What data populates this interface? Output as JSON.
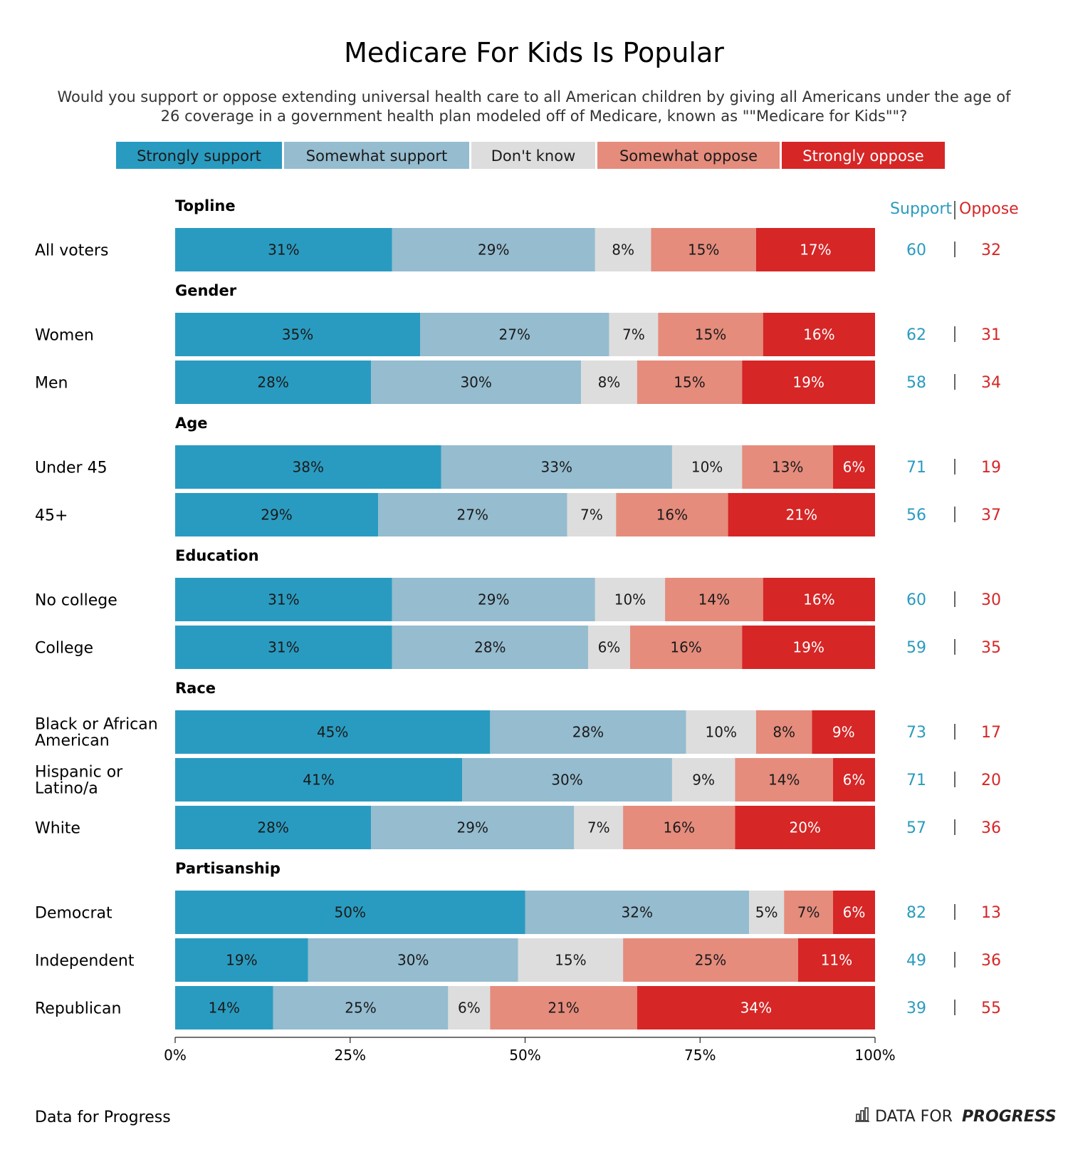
{
  "title": "Medicare For Kids Is Popular",
  "subtitle_lines": [
    "Would you support or oppose extending universal health care to all American children by giving all Americans under the age of",
    "26 coverage in a government health plan modeled off of Medicare, known as \"\"Medicare for Kids\"\"?"
  ],
  "net_header": {
    "support": "Support",
    "oppose": "Oppose"
  },
  "footer": {
    "source": "Data for Progress",
    "brand_plain": "DATA FOR",
    "brand_bold": "PROGRESS"
  },
  "colors": {
    "strongly_support": "#2a9bc0",
    "somewhat_support": "#95bccf",
    "dont_know": "#dddddd",
    "somewhat_oppose": "#e58c7d",
    "strongly_oppose": "#d62626",
    "support_text": "#2a9bc0",
    "oppose_text": "#d62626"
  },
  "chart_data": {
    "type": "bar",
    "orientation": "horizontal",
    "stacked": true,
    "xlim": [
      0,
      100
    ],
    "x_ticks": [
      "0%",
      "25%",
      "50%",
      "75%",
      "100%"
    ],
    "legend": [
      "Strongly support",
      "Somewhat support",
      "Don't know",
      "Somewhat oppose",
      "Strongly oppose"
    ],
    "legend_position": "top",
    "groups": [
      {
        "name": "Topline",
        "rows": [
          {
            "label": [
              "All voters"
            ],
            "values": [
              31,
              29,
              8,
              15,
              17
            ],
            "support": 60,
            "oppose": 32
          }
        ]
      },
      {
        "name": "Gender",
        "rows": [
          {
            "label": [
              "Women"
            ],
            "values": [
              35,
              27,
              7,
              15,
              16
            ],
            "support": 62,
            "oppose": 31
          },
          {
            "label": [
              "Men"
            ],
            "values": [
              28,
              30,
              8,
              15,
              19
            ],
            "support": 58,
            "oppose": 34
          }
        ]
      },
      {
        "name": "Age",
        "rows": [
          {
            "label": [
              "Under 45"
            ],
            "values": [
              38,
              33,
              10,
              13,
              6
            ],
            "support": 71,
            "oppose": 19
          },
          {
            "label": [
              "45+"
            ],
            "values": [
              29,
              27,
              7,
              16,
              21
            ],
            "support": 56,
            "oppose": 37
          }
        ]
      },
      {
        "name": "Education",
        "rows": [
          {
            "label": [
              "No college"
            ],
            "values": [
              31,
              29,
              10,
              14,
              16
            ],
            "support": 60,
            "oppose": 30
          },
          {
            "label": [
              "College"
            ],
            "values": [
              31,
              28,
              6,
              16,
              19
            ],
            "support": 59,
            "oppose": 35
          }
        ]
      },
      {
        "name": "Race",
        "rows": [
          {
            "label": [
              "Black or African",
              "American"
            ],
            "values": [
              45,
              28,
              10,
              8,
              9
            ],
            "support": 73,
            "oppose": 17
          },
          {
            "label": [
              "Hispanic or",
              "Latino/a"
            ],
            "values": [
              41,
              30,
              9,
              14,
              6
            ],
            "support": 71,
            "oppose": 20
          },
          {
            "label": [
              "White"
            ],
            "values": [
              28,
              29,
              7,
              16,
              20
            ],
            "support": 57,
            "oppose": 36
          }
        ]
      },
      {
        "name": "Partisanship",
        "rows": [
          {
            "label": [
              "Democrat"
            ],
            "values": [
              50,
              32,
              5,
              7,
              6
            ],
            "support": 82,
            "oppose": 13
          },
          {
            "label": [
              "Independent"
            ],
            "values": [
              19,
              30,
              15,
              25,
              11
            ],
            "support": 49,
            "oppose": 36
          },
          {
            "label": [
              "Republican"
            ],
            "values": [
              14,
              25,
              6,
              21,
              34
            ],
            "support": 39,
            "oppose": 55
          }
        ]
      }
    ]
  }
}
